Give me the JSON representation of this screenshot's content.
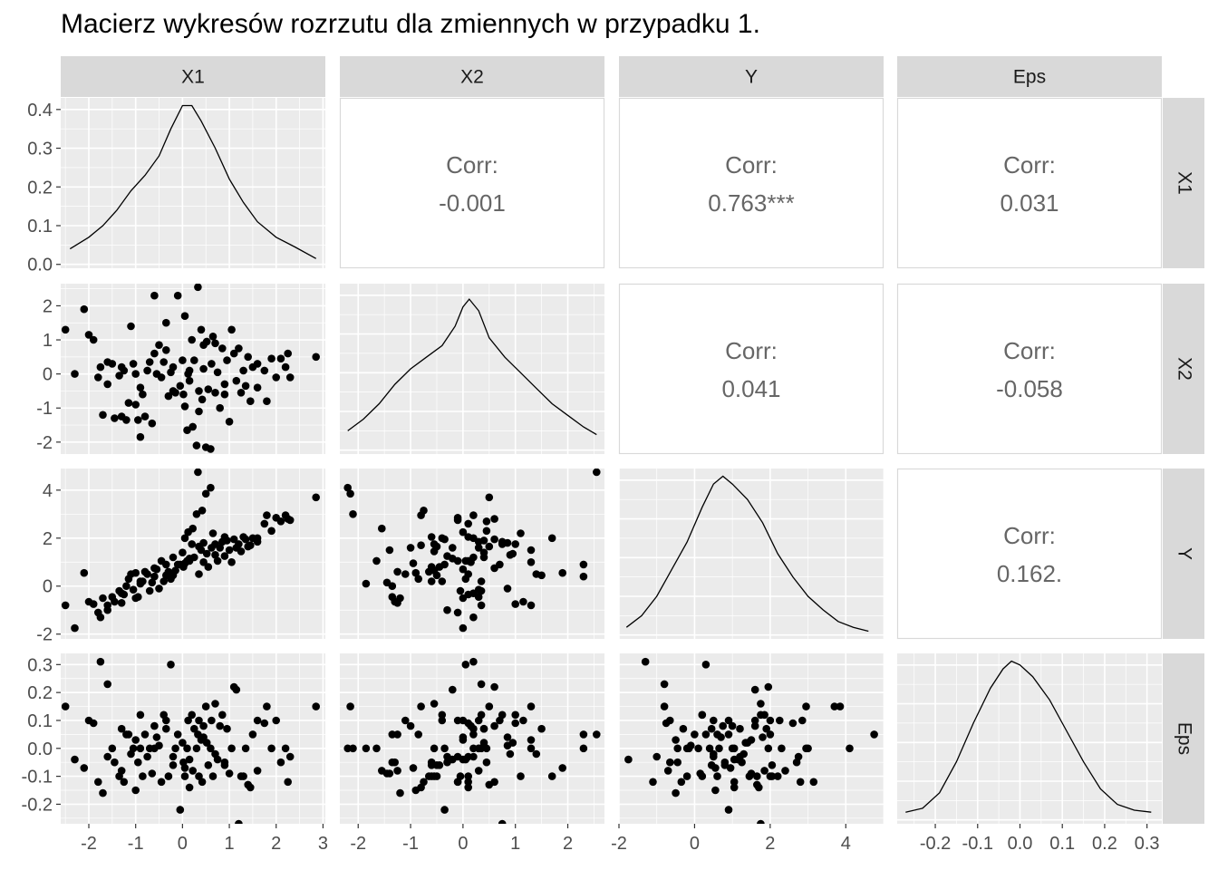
{
  "title": "Macierz wykresów rozrzutu dla zmiennych w przypadku 1.",
  "colors": {
    "panel_background": "#ebebeb",
    "grid_major": "#ffffff",
    "strip_background": "#d9d9d9",
    "points": "#000000",
    "corr_text": "#666666",
    "tick_text": "#4d4d4d"
  },
  "chart_data": {
    "type": "scatter",
    "variables": [
      "X1",
      "X2",
      "Y",
      "Eps"
    ],
    "column_strips": [
      "X1",
      "X2",
      "Y",
      "Eps"
    ],
    "row_strips": [
      "X1",
      "X2",
      "Y",
      "Eps"
    ],
    "x_ticks": [
      [
        "-2",
        "-1",
        "0",
        "1",
        "2",
        "3"
      ],
      [
        "-2",
        "-1",
        "0",
        "1",
        "2"
      ],
      [
        "-2",
        "0",
        "2",
        "4"
      ],
      [
        "-0.2",
        "-0.1",
        "0.0",
        "0.1",
        "0.2",
        "0.3"
      ]
    ],
    "y_ticks": [
      [
        "0.0",
        "0.1",
        "0.2",
        "0.3",
        "0.4"
      ],
      [
        "-2",
        "-1",
        "0",
        "1",
        "2"
      ],
      [
        "-2",
        "0",
        "2",
        "4"
      ],
      [
        "-0.2",
        "-0.1",
        "0.0",
        "0.1",
        "0.2",
        "0.3"
      ]
    ],
    "x_ranges": [
      [
        -2.6,
        3.05
      ],
      [
        -2.35,
        2.7
      ],
      [
        -2.0,
        5.0
      ],
      [
        -0.29,
        0.335
      ]
    ],
    "diag_density_ylim": [
      -0.01,
      0.43
    ],
    "correlations": [
      {
        "row": 0,
        "col": 1,
        "label": "Corr:",
        "value": "-0.001"
      },
      {
        "row": 0,
        "col": 2,
        "label": "Corr:",
        "value": "0.763***"
      },
      {
        "row": 0,
        "col": 3,
        "label": "Corr:",
        "value": "0.031"
      },
      {
        "row": 1,
        "col": 2,
        "label": "Corr:",
        "value": "0.041"
      },
      {
        "row": 1,
        "col": 3,
        "label": "Corr:",
        "value": "-0.058"
      },
      {
        "row": 2,
        "col": 3,
        "label": "Corr:",
        "value": "0.162."
      }
    ],
    "densities": [
      {
        "var": "X1",
        "x": [
          -2.4,
          -2.0,
          -1.7,
          -1.4,
          -1.1,
          -0.8,
          -0.5,
          -0.25,
          0.0,
          0.2,
          0.4,
          0.7,
          1.0,
          1.3,
          1.6,
          2.0,
          2.4,
          2.85
        ],
        "y": [
          0.04,
          0.07,
          0.1,
          0.14,
          0.19,
          0.23,
          0.28,
          0.35,
          0.41,
          0.41,
          0.37,
          0.3,
          0.22,
          0.16,
          0.11,
          0.07,
          0.045,
          0.015
        ]
      },
      {
        "var": "X2",
        "x": [
          -2.2,
          -1.9,
          -1.6,
          -1.3,
          -1.0,
          -0.7,
          -0.4,
          -0.15,
          0.0,
          0.12,
          0.3,
          0.5,
          0.8,
          1.1,
          1.4,
          1.7,
          2.0,
          2.3,
          2.55
        ],
        "y": [
          0.05,
          0.08,
          0.12,
          0.17,
          0.21,
          0.24,
          0.27,
          0.32,
          0.37,
          0.39,
          0.36,
          0.29,
          0.24,
          0.2,
          0.16,
          0.12,
          0.09,
          0.06,
          0.04
        ]
      },
      {
        "var": "Y",
        "x": [
          -1.8,
          -1.4,
          -1.0,
          -0.6,
          -0.2,
          0.2,
          0.5,
          0.75,
          1.0,
          1.4,
          1.8,
          2.2,
          2.6,
          3.0,
          3.4,
          3.8,
          4.2,
          4.6
        ],
        "y": [
          0.02,
          0.05,
          0.1,
          0.17,
          0.24,
          0.33,
          0.39,
          0.41,
          0.39,
          0.35,
          0.29,
          0.21,
          0.15,
          0.1,
          0.065,
          0.035,
          0.02,
          0.01
        ]
      },
      {
        "var": "Eps",
        "x": [
          -0.27,
          -0.23,
          -0.19,
          -0.15,
          -0.11,
          -0.07,
          -0.04,
          -0.02,
          0.0,
          0.03,
          0.07,
          0.11,
          0.15,
          0.19,
          0.23,
          0.27,
          0.31
        ],
        "y": [
          0.02,
          0.03,
          0.07,
          0.15,
          0.25,
          0.34,
          0.39,
          0.41,
          0.4,
          0.37,
          0.31,
          0.23,
          0.15,
          0.08,
          0.04,
          0.025,
          0.02
        ]
      }
    ],
    "observations": {
      "columns": [
        "X1",
        "X2",
        "Y",
        "Eps"
      ],
      "rows": [
        [
          -2.5,
          1.3,
          -0.8,
          0.15
        ],
        [
          -2.3,
          0.0,
          -1.75,
          -0.04
        ],
        [
          -2.1,
          1.9,
          0.55,
          -0.07
        ],
        [
          -2.0,
          1.15,
          -0.65,
          0.1
        ],
        [
          -1.9,
          1.0,
          -0.75,
          0.09
        ],
        [
          -1.7,
          -1.2,
          -0.5,
          -0.16
        ],
        [
          -1.75,
          0.2,
          -1.3,
          0.31
        ],
        [
          -1.6,
          0.35,
          -0.8,
          0.23
        ],
        [
          -1.5,
          0.3,
          -0.45,
          0.0
        ],
        [
          -1.45,
          -1.3,
          -0.65,
          -0.05
        ],
        [
          -1.35,
          -0.05,
          -0.2,
          -0.1
        ],
        [
          -1.3,
          -1.25,
          -0.7,
          -0.08
        ],
        [
          -1.25,
          0.1,
          -0.35,
          -0.12
        ],
        [
          -1.2,
          -1.35,
          0.0,
          0.05
        ],
        [
          -1.15,
          -0.85,
          0.3,
          0.05
        ],
        [
          -1.1,
          1.4,
          0.5,
          -0.02
        ],
        [
          -1.05,
          0.3,
          -0.15,
          0.0
        ],
        [
          -1.0,
          -0.9,
          0.55,
          -0.15
        ],
        [
          -0.95,
          -1.35,
          -0.45,
          -0.05
        ],
        [
          -0.9,
          -1.85,
          0.1,
          0.0
        ],
        [
          -0.85,
          -0.6,
          0.2,
          -0.1
        ],
        [
          -0.8,
          -1.25,
          0.6,
          0.05
        ],
        [
          -0.75,
          0.1,
          0.5,
          -0.03
        ],
        [
          -0.7,
          0.35,
          -0.2,
          0.0
        ],
        [
          -0.65,
          -1.45,
          0.15,
          -0.09
        ],
        [
          -0.6,
          2.3,
          0.4,
          0.0
        ],
        [
          -0.55,
          0.0,
          0.7,
          0.04
        ],
        [
          -0.5,
          0.85,
          -0.1,
          0.01
        ],
        [
          -0.45,
          -0.1,
          1.05,
          -0.12
        ],
        [
          -0.4,
          0.35,
          0.2,
          0.12
        ],
        [
          -0.35,
          1.5,
          0.45,
          0.07
        ],
        [
          -0.3,
          -0.65,
          0.6,
          -0.1
        ],
        [
          -0.25,
          0.05,
          0.3,
          0.3
        ],
        [
          -0.2,
          0.2,
          1.2,
          -0.03
        ],
        [
          -0.15,
          -0.55,
          0.65,
          0.0
        ],
        [
          -0.1,
          2.3,
          0.9,
          0.05
        ],
        [
          -0.05,
          -0.35,
          0.9,
          -0.22
        ],
        [
          0.0,
          0.4,
          1.4,
          0.02
        ],
        [
          0.02,
          -0.6,
          0.8,
          -0.05
        ],
        [
          0.05,
          1.7,
          2.0,
          -0.1
        ],
        [
          0.1,
          -1.65,
          1.05,
          0.0
        ],
        [
          0.12,
          0.0,
          2.25,
          0.1
        ],
        [
          0.15,
          -0.2,
          1.15,
          -0.04
        ],
        [
          0.2,
          1.0,
          1.75,
          0.12
        ],
        [
          0.22,
          -1.55,
          2.4,
          -0.08
        ],
        [
          0.25,
          0.4,
          1.2,
          0.07
        ],
        [
          0.3,
          -2.1,
          3.0,
          0.0
        ],
        [
          0.33,
          2.55,
          4.75,
          0.05
        ],
        [
          0.35,
          -0.5,
          1.65,
          -0.1
        ],
        [
          0.4,
          1.3,
          1.5,
          0.03
        ],
        [
          0.42,
          -0.75,
          3.15,
          -0.12
        ],
        [
          0.45,
          0.15,
          1.0,
          0.08
        ],
        [
          0.5,
          -2.15,
          3.85,
          0.15
        ],
        [
          0.52,
          0.95,
          1.35,
          0.02
        ],
        [
          0.55,
          -0.45,
          0.8,
          -0.06
        ],
        [
          0.6,
          -2.2,
          4.1,
          0.0
        ],
        [
          0.62,
          0.3,
          1.6,
          0.1
        ],
        [
          0.65,
          1.1,
          2.2,
          -0.1
        ],
        [
          0.7,
          -0.55,
          1.75,
          0.16
        ],
        [
          0.75,
          0.05,
          1.05,
          -0.04
        ],
        [
          0.8,
          -1.0,
          1.6,
          0.08
        ],
        [
          0.85,
          0.75,
          1.85,
          0.12
        ],
        [
          0.9,
          -0.3,
          1.25,
          -0.05
        ],
        [
          0.95,
          0.4,
          1.9,
          0.07
        ],
        [
          1.0,
          -1.4,
          1.5,
          -0.09
        ],
        [
          1.05,
          1.3,
          1.0,
          0.0
        ],
        [
          1.1,
          0.6,
          1.95,
          0.22
        ],
        [
          1.15,
          -0.2,
          1.6,
          0.21
        ],
        [
          1.2,
          0.75,
          1.75,
          -0.27
        ],
        [
          1.25,
          -0.55,
          1.45,
          -0.1
        ],
        [
          1.3,
          0.1,
          2.05,
          -0.1
        ],
        [
          1.35,
          -0.35,
          1.95,
          0.0
        ],
        [
          1.4,
          0.5,
          1.65,
          -0.13
        ],
        [
          1.45,
          -0.8,
          1.7,
          -0.14
        ],
        [
          1.5,
          0.2,
          2.0,
          0.05
        ],
        [
          1.6,
          -0.4,
          2.0,
          0.1
        ],
        [
          1.75,
          0.1,
          2.6,
          0.09
        ],
        [
          1.8,
          -0.8,
          2.95,
          0.15
        ],
        [
          1.9,
          0.45,
          2.3,
          0.0
        ],
        [
          2.0,
          -0.1,
          2.85,
          0.1
        ],
        [
          2.1,
          0.45,
          2.7,
          -0.05
        ],
        [
          2.2,
          0.2,
          2.95,
          0.0
        ],
        [
          2.25,
          0.6,
          2.8,
          -0.12
        ],
        [
          2.3,
          -0.1,
          2.75,
          -0.03
        ],
        [
          2.85,
          0.5,
          3.7,
          0.15
        ],
        [
          -1.8,
          -0.1,
          -1.1,
          -0.12
        ],
        [
          -1.3,
          0.2,
          -0.3,
          0.07
        ],
        [
          -0.9,
          -0.4,
          0.2,
          0.12
        ],
        [
          -0.6,
          0.6,
          0.75,
          0.08
        ],
        [
          0.15,
          0.1,
          1.05,
          -0.14
        ],
        [
          0.35,
          -1.1,
          0.5,
          0.1
        ],
        [
          0.7,
          0.9,
          1.3,
          -0.02
        ],
        [
          -0.2,
          -0.5,
          0.45,
          -0.06
        ],
        [
          0.45,
          0.85,
          1.8,
          0.04
        ],
        [
          -1.0,
          0.0,
          -0.5,
          0.03
        ],
        [
          0.9,
          -0.6,
          2.05,
          -0.06
        ],
        [
          1.6,
          0.3,
          1.85,
          -0.08
        ],
        [
          -0.35,
          0.7,
          0.9,
          0.1
        ],
        [
          0.05,
          -0.95,
          0.95,
          -0.07
        ],
        [
          -1.6,
          -0.3,
          -1.0,
          -0.03
        ]
      ]
    }
  }
}
